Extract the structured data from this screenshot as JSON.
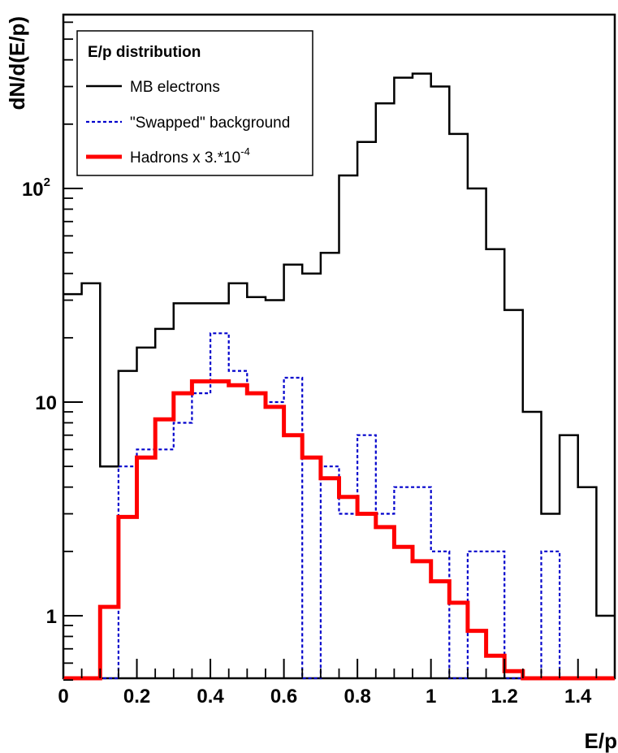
{
  "chart_data": {
    "type": "step",
    "title": "",
    "xlabel": "E/p",
    "ylabel": "dN/d(E/p)",
    "xlim": [
      0,
      1.5
    ],
    "ylim": [
      0.5,
      600
    ],
    "ylog": true,
    "grid": false,
    "legend_position": "top-left",
    "legend_title": "E/p distribution",
    "bin_edges": [
      0,
      0.05,
      0.1,
      0.15,
      0.2,
      0.25,
      0.3,
      0.35,
      0.4,
      0.45,
      0.5,
      0.55,
      0.6,
      0.65,
      0.7,
      0.75,
      0.8,
      0.85,
      0.9,
      0.95,
      1.0,
      1.05,
      1.1,
      1.15,
      1.2,
      1.25,
      1.3,
      1.35,
      1.4,
      1.45,
      1.5
    ],
    "x_ticks": [
      {
        "value": 0,
        "label": "0"
      },
      {
        "value": 0.2,
        "label": "0.2"
      },
      {
        "value": 0.4,
        "label": "0.4"
      },
      {
        "value": 0.6,
        "label": "0.6"
      },
      {
        "value": 0.8,
        "label": "0.8"
      },
      {
        "value": 1.0,
        "label": "1"
      },
      {
        "value": 1.2,
        "label": "1.2"
      },
      {
        "value": 1.4,
        "label": "1.4"
      }
    ],
    "y_ticks": [
      {
        "value": 1,
        "label": "1"
      },
      {
        "value": 10,
        "label": "10"
      },
      {
        "value": 100,
        "label": "10",
        "sup": "2"
      }
    ],
    "series": [
      {
        "name": "MB electrons",
        "color": "#000000",
        "style": "solid",
        "values": [
          32,
          36,
          5,
          14,
          18,
          22,
          29,
          29,
          29,
          36,
          31,
          30,
          44,
          40,
          50,
          115,
          165,
          250,
          330,
          345,
          300,
          180,
          100,
          52,
          27,
          9,
          3,
          7,
          4,
          1
        ]
      },
      {
        "name": "\"Swapped\" background",
        "color": "#0000cc",
        "style": "dotted",
        "values": [
          0.5,
          0.5,
          0.5,
          5,
          6,
          6,
          8,
          11,
          21,
          14,
          11,
          10,
          13,
          0.5,
          5,
          3,
          7,
          3,
          4,
          4,
          2,
          0.5,
          2,
          2,
          0.5,
          0.5,
          2,
          0.5,
          0.5,
          0.5
        ]
      },
      {
        "name": "Hadrons x 3.*10",
        "name_sup": "-4",
        "color": "#ff0000",
        "style": "thick",
        "values": [
          0.5,
          0.5,
          1.1,
          2.9,
          5.5,
          8.3,
          11,
          12.5,
          12.5,
          12,
          11,
          9.5,
          7,
          5.5,
          4.4,
          3.6,
          3,
          2.6,
          2.1,
          1.8,
          1.45,
          1.15,
          0.85,
          0.65,
          0.55,
          0.5,
          0.5,
          0.5,
          0.5,
          0.5
        ]
      }
    ]
  }
}
